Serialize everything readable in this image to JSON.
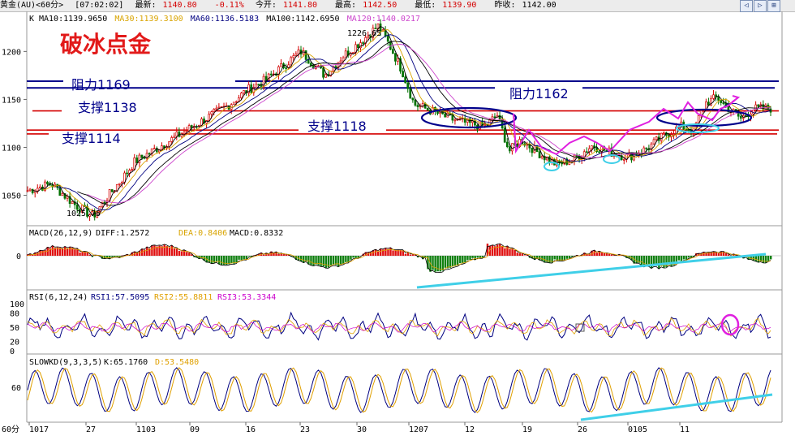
{
  "header": {
    "instrument": "黄金(AU)<60分>",
    "time": "[07:02:02]",
    "latest_label": "最新:",
    "latest": "1140.80",
    "change": "-0.11%",
    "open_label": "今开:",
    "open": "1141.80",
    "high_label": "最高:",
    "high": "1142.50",
    "low_label": "最低:",
    "low": "1139.90",
    "prev_close_label": "昨收:",
    "prev_close": "1142.00"
  },
  "colors": {
    "ma10": "#000000",
    "ma30": "#d9a400",
    "ma60": "#000080",
    "ma100": "#000000",
    "ma120": "#cc44cc",
    "up_candle": "#d40000",
    "down_candle": "#007000",
    "annotation_blue": "#00008b",
    "annotation_red": "#d40000",
    "trendline_cyan": "#3fcfe8",
    "magenta": "#e020e0",
    "diff_line": "#000000",
    "dea_line": "#e0a000",
    "rsi1": "#000080",
    "rsi2": "#e0a000",
    "rsi3": "#cc00cc"
  },
  "main": {
    "k_label": "K",
    "ma_legend": [
      {
        "name": "MA10",
        "value": "1139.9650",
        "color": "#000000"
      },
      {
        "name": "MA30",
        "value": "1139.3100",
        "color": "#d9a400"
      },
      {
        "name": "MA60",
        "value": "1136.5183",
        "color": "#000080"
      },
      {
        "name": "MA100",
        "value": "1142.6950",
        "color": "#000000"
      },
      {
        "name": "MA120",
        "value": "1140.0217",
        "color": "#cc44cc"
      }
    ],
    "watermark": "破冰点金",
    "high_label": "1226.65",
    "low_label": "1025.75",
    "annotations": {
      "resist_1169": "阻力1169",
      "resist_1162": "阻力1162",
      "support_1138": "支撑1138",
      "support_1118": "支撑1118",
      "support_1114": "支撑1114"
    }
  },
  "macd": {
    "legend": "MACD(26,12,9)",
    "diff_label": "DIFF:1.2572",
    "dea_label": "DEA:0.8406",
    "macd_label": "MACD:0.8332",
    "zero_tick": "0"
  },
  "rsi": {
    "legend": "RSI(6,12,24)",
    "rsi1_label": "RSI1:57.5095",
    "rsi2_label": "RSI2:55.8811",
    "rsi3_label": "RSI3:53.3344",
    "ticks": [
      "100",
      "80",
      "50",
      "20",
      "0"
    ]
  },
  "kd": {
    "legend": "SLOWKD(9,3,3,5)",
    "k_label": "K:65.1760",
    "d_label": "D:53.5480",
    "tick": "60"
  },
  "xaxis": {
    "period": "60分",
    "ticks": [
      "1017",
      "27",
      "1103",
      "09",
      "16",
      "23",
      "30",
      "1207",
      "12",
      "19",
      "26",
      "0105",
      "11"
    ]
  },
  "chart_data": {
    "type": "candlestick",
    "title": "",
    "yticks": [
      1050,
      1100,
      1150,
      1200
    ],
    "ylim": [
      1020,
      1235
    ],
    "x": [
      "1017",
      "27",
      "1103",
      "09",
      "16",
      "23",
      "30",
      "1207",
      "12",
      "19",
      "26",
      "0105",
      "11"
    ],
    "price_path": [
      [
        0,
        1055
      ],
      [
        4,
        1062
      ],
      [
        8,
        1040
      ],
      [
        11,
        1028
      ],
      [
        13,
        1045
      ],
      [
        16,
        1068
      ],
      [
        18,
        1085
      ],
      [
        22,
        1100
      ],
      [
        26,
        1115
      ],
      [
        30,
        1130
      ],
      [
        34,
        1145
      ],
      [
        37,
        1160
      ],
      [
        40,
        1170
      ],
      [
        43,
        1185
      ],
      [
        46,
        1200
      ],
      [
        50,
        1175
      ],
      [
        53,
        1195
      ],
      [
        56,
        1210
      ],
      [
        59,
        1226.65
      ],
      [
        61,
        1205
      ],
      [
        63,
        1180
      ],
      [
        65,
        1145
      ],
      [
        68,
        1138
      ],
      [
        71,
        1130
      ],
      [
        74,
        1125
      ],
      [
        77,
        1122
      ],
      [
        79,
        1134
      ],
      [
        81,
        1096
      ],
      [
        83,
        1108
      ],
      [
        86,
        1094
      ],
      [
        89,
        1082
      ],
      [
        92,
        1088
      ],
      [
        95,
        1102
      ],
      [
        98,
        1095
      ],
      [
        101,
        1090
      ],
      [
        104,
        1098
      ],
      [
        107,
        1112
      ],
      [
        110,
        1122
      ],
      [
        112,
        1118
      ],
      [
        114,
        1146
      ],
      [
        116,
        1152
      ],
      [
        118,
        1140
      ],
      [
        120,
        1130
      ],
      [
        122,
        1140
      ],
      [
        125,
        1140.8
      ]
    ],
    "levels": [
      {
        "label": "阻力1169",
        "value": 1169
      },
      {
        "label": "阻力1162",
        "value": 1162
      },
      {
        "label": "支撑1138",
        "value": 1138
      },
      {
        "label": "支撑1118",
        "value": 1118
      },
      {
        "label": "支撑1114",
        "value": 1114
      }
    ],
    "annotations": [
      {
        "text": "1226.65",
        "value": 1226.65
      },
      {
        "text": "1025.75",
        "value": 1025.75
      }
    ]
  }
}
